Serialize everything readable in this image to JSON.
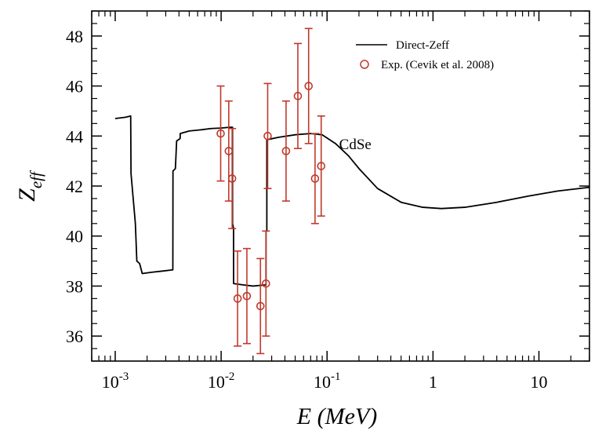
{
  "colors": {
    "theory": "#000000",
    "experiment": "#c0392b"
  },
  "chart_data": {
    "type": "line",
    "title": "",
    "xlabel": "E (MeV)",
    "ylabel_main": "Z",
    "ylabel_sub": "eff",
    "xscale": "log",
    "xlim": [
      0.0006,
      30
    ],
    "ylim": [
      35,
      49
    ],
    "xticks": [
      {
        "value": 0.001,
        "base": "10",
        "exp": "-3"
      },
      {
        "value": 0.01,
        "base": "10",
        "exp": "-2"
      },
      {
        "value": 0.1,
        "base": "10",
        "exp": "-1"
      },
      {
        "value": 1,
        "base": "1",
        "exp": ""
      },
      {
        "value": 10,
        "base": "10",
        "exp": ""
      }
    ],
    "yticks": [
      {
        "value": 36,
        "label": "36"
      },
      {
        "value": 38,
        "label": "38"
      },
      {
        "value": 40,
        "label": "40"
      },
      {
        "value": 42,
        "label": "42"
      },
      {
        "value": 44,
        "label": "44"
      },
      {
        "value": 46,
        "label": "46"
      },
      {
        "value": 48,
        "label": "48"
      }
    ],
    "legend_position": "top-right",
    "annotation": {
      "text": "CdSe",
      "x": 0.13,
      "y": 43.7
    },
    "series": [
      {
        "name": "Direct-Zeff",
        "style": "line",
        "points": [
          [
            0.001,
            44.7
          ],
          [
            0.00125,
            44.75
          ],
          [
            0.0014,
            44.8
          ],
          [
            0.00141,
            42.5
          ],
          [
            0.00155,
            40.5
          ],
          [
            0.0016,
            39.0
          ],
          [
            0.0017,
            38.9
          ],
          [
            0.0018,
            38.5
          ],
          [
            0.0022,
            38.55
          ],
          [
            0.0028,
            38.6
          ],
          [
            0.0035,
            38.65
          ],
          [
            0.00351,
            42.6
          ],
          [
            0.0037,
            42.7
          ],
          [
            0.0038,
            43.8
          ],
          [
            0.0041,
            43.9
          ],
          [
            0.00411,
            44.1
          ],
          [
            0.005,
            44.2
          ],
          [
            0.0065,
            44.25
          ],
          [
            0.008,
            44.3
          ],
          [
            0.01,
            44.32
          ],
          [
            0.012,
            44.35
          ],
          [
            0.0128,
            44.35
          ],
          [
            0.01281,
            40.5
          ],
          [
            0.0131,
            40.3
          ],
          [
            0.01311,
            38.1
          ],
          [
            0.016,
            38.05
          ],
          [
            0.02,
            38.0
          ],
          [
            0.0265,
            38.05
          ],
          [
            0.02651,
            40.2
          ],
          [
            0.027,
            40.2
          ],
          [
            0.02701,
            43.85
          ],
          [
            0.035,
            43.95
          ],
          [
            0.05,
            44.05
          ],
          [
            0.07,
            44.1
          ],
          [
            0.09,
            44.05
          ],
          [
            0.12,
            43.7
          ],
          [
            0.16,
            43.2
          ],
          [
            0.2,
            42.7
          ],
          [
            0.3,
            41.9
          ],
          [
            0.5,
            41.35
          ],
          [
            0.8,
            41.15
          ],
          [
            1.2,
            41.1
          ],
          [
            2,
            41.15
          ],
          [
            4,
            41.35
          ],
          [
            8,
            41.6
          ],
          [
            15,
            41.8
          ],
          [
            30,
            41.95
          ]
        ]
      },
      {
        "name": "Exp. (Cevik et al. 2008)",
        "style": "marker-errorbar",
        "points": [
          {
            "x": 0.0099,
            "y": 44.1,
            "lo": 42.2,
            "hi": 46.0
          },
          {
            "x": 0.0118,
            "y": 43.4,
            "lo": 41.4,
            "hi": 45.4
          },
          {
            "x": 0.0127,
            "y": 42.3,
            "lo": 40.3,
            "hi": 44.3
          },
          {
            "x": 0.0143,
            "y": 37.5,
            "lo": 35.6,
            "hi": 39.4
          },
          {
            "x": 0.0175,
            "y": 37.6,
            "lo": 35.7,
            "hi": 39.5
          },
          {
            "x": 0.0235,
            "y": 37.2,
            "lo": 35.3,
            "hi": 39.1
          },
          {
            "x": 0.0265,
            "y": 38.1,
            "lo": 36.0,
            "hi": 40.2
          },
          {
            "x": 0.0275,
            "y": 44.0,
            "lo": 41.9,
            "hi": 46.1
          },
          {
            "x": 0.041,
            "y": 43.4,
            "lo": 41.4,
            "hi": 45.4
          },
          {
            "x": 0.053,
            "y": 45.6,
            "lo": 43.5,
            "hi": 47.7
          },
          {
            "x": 0.067,
            "y": 46.0,
            "lo": 43.7,
            "hi": 48.3
          },
          {
            "x": 0.077,
            "y": 42.3,
            "lo": 40.5,
            "hi": 44.1
          },
          {
            "x": 0.088,
            "y": 42.8,
            "lo": 40.8,
            "hi": 44.8
          }
        ]
      }
    ]
  }
}
